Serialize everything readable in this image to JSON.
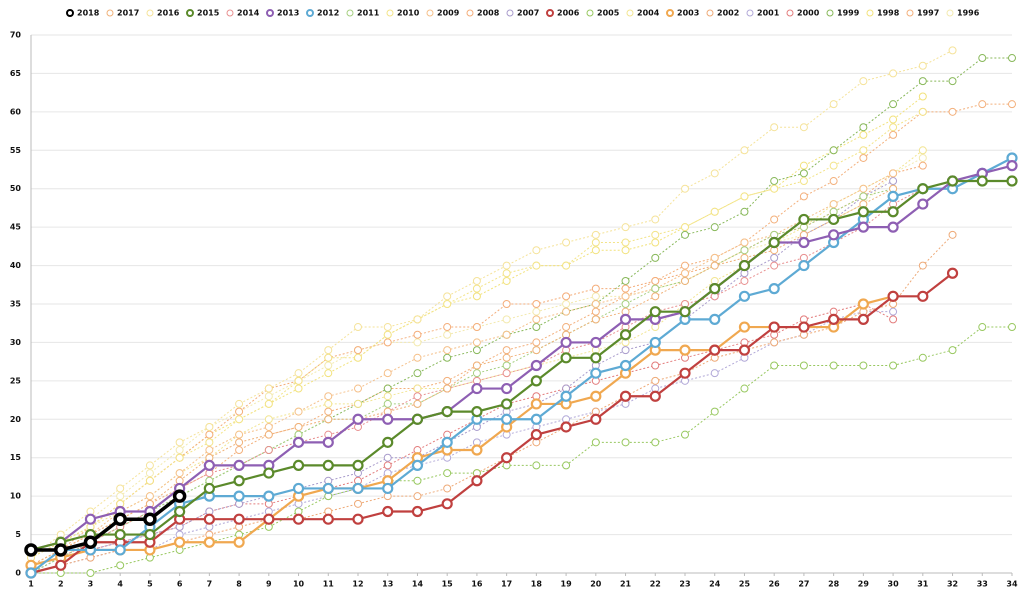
{
  "chart_data": {
    "type": "line",
    "x": [
      1,
      2,
      3,
      4,
      5,
      6,
      7,
      8,
      9,
      10,
      11,
      12,
      13,
      14,
      15,
      16,
      17,
      18,
      19,
      20,
      21,
      22,
      23,
      24,
      25,
      26,
      27,
      28,
      29,
      30,
      31,
      32,
      33,
      34
    ],
    "xlim": [
      1,
      34
    ],
    "xticks": [
      1,
      2,
      3,
      4,
      5,
      6,
      7,
      8,
      9,
      10,
      11,
      12,
      13,
      14,
      15,
      16,
      17,
      18,
      19,
      20,
      21,
      22,
      23,
      24,
      25,
      26,
      27,
      28,
      29,
      30,
      31,
      32,
      33,
      34
    ],
    "ylim": [
      0,
      70
    ],
    "yticks": [
      0,
      5,
      10,
      15,
      20,
      25,
      30,
      35,
      40,
      45,
      50,
      55,
      60,
      65,
      70
    ],
    "grid": true,
    "legend": "top",
    "series": [
      {
        "name": "2018",
        "color": "#000000",
        "line_style": "solid",
        "values": [
          3,
          3,
          4,
          7,
          7,
          10,
          null,
          null,
          null,
          null,
          null,
          null,
          null,
          null,
          null,
          null,
          null,
          null,
          null,
          null,
          null,
          null,
          null,
          null,
          null,
          null,
          null,
          null,
          null,
          null,
          null,
          null,
          null,
          null
        ]
      },
      {
        "name": "2017",
        "color": "#f0b27a",
        "line_style": "dotted",
        "values": [
          1,
          3,
          5,
          7,
          9,
          12,
          15,
          17,
          18,
          19,
          20,
          20,
          21,
          22,
          24,
          27,
          28,
          29,
          31,
          33,
          34,
          36,
          38,
          40,
          41,
          42,
          44,
          46,
          48,
          50,
          null,
          null,
          null,
          null
        ]
      },
      {
        "name": "2016",
        "color": "#f5e39a",
        "line_style": "dotted",
        "values": [
          2,
          5,
          8,
          11,
          14,
          17,
          19,
          22,
          24,
          26,
          29,
          32,
          32,
          33,
          36,
          38,
          40,
          42,
          43,
          44,
          45,
          46,
          50,
          52,
          55,
          58,
          58,
          61,
          64,
          65,
          66,
          68,
          null,
          null
        ]
      },
      {
        "name": "2015",
        "color": "#5b8a2b",
        "line_style": "solid",
        "values": [
          3,
          4,
          5,
          5,
          5,
          8,
          11,
          12,
          13,
          14,
          14,
          14,
          17,
          20,
          21,
          21,
          22,
          25,
          28,
          28,
          31,
          34,
          34,
          37,
          40,
          43,
          46,
          46,
          47,
          47,
          50,
          51,
          51,
          51
        ]
      },
      {
        "name": "2014",
        "color": "#e89090",
        "line_style": "dotted",
        "values": [
          1,
          2,
          4,
          6,
          8,
          11,
          13,
          14,
          16,
          17,
          18,
          19,
          21,
          23,
          24,
          25,
          26,
          27,
          29,
          30,
          32,
          34,
          35,
          36,
          38,
          40,
          41,
          43,
          45,
          48,
          50,
          null,
          null,
          null
        ]
      },
      {
        "name": "2013",
        "color": "#8e5fb3",
        "line_style": "solid",
        "values": [
          3,
          4,
          7,
          8,
          8,
          11,
          14,
          14,
          14,
          17,
          17,
          20,
          20,
          20,
          21,
          24,
          24,
          27,
          30,
          30,
          33,
          33,
          34,
          37,
          40,
          43,
          43,
          44,
          45,
          45,
          48,
          51,
          52,
          53
        ]
      },
      {
        "name": "2012",
        "color": "#5eaad4",
        "line_style": "solid",
        "values": [
          0,
          3,
          3,
          3,
          6,
          9,
          10,
          10,
          10,
          11,
          11,
          11,
          11,
          14,
          17,
          20,
          20,
          20,
          23,
          26,
          27,
          30,
          33,
          33,
          36,
          37,
          40,
          43,
          46,
          49,
          50,
          50,
          52,
          54
        ]
      },
      {
        "name": "2011",
        "color": "#a6cf80",
        "line_style": "dotted",
        "values": [
          0,
          2,
          4,
          6,
          8,
          10,
          12,
          14,
          16,
          18,
          20,
          20,
          22,
          22,
          24,
          26,
          27,
          29,
          31,
          33,
          35,
          37,
          38,
          40,
          42,
          44,
          45,
          47,
          49,
          50,
          null,
          null,
          null,
          null
        ]
      },
      {
        "name": "2010",
        "color": "#f3e489",
        "line_style": "dotted",
        "values": [
          2,
          4,
          6,
          9,
          12,
          15,
          17,
          20,
          22,
          25,
          28,
          28,
          31,
          33,
          35,
          37,
          39,
          40,
          40,
          43,
          43,
          44,
          45,
          47,
          49,
          50,
          51,
          53,
          55,
          58,
          60,
          null,
          null,
          null
        ]
      },
      {
        "name": "2009",
        "color": "#f5c08a",
        "line_style": "dotted",
        "values": [
          1,
          3,
          5,
          8,
          10,
          13,
          16,
          18,
          19,
          21,
          23,
          24,
          26,
          28,
          29,
          30,
          31,
          33,
          34,
          35,
          36,
          37,
          39,
          41,
          43,
          44,
          46,
          48,
          50,
          52,
          null,
          null,
          null,
          null
        ]
      },
      {
        "name": "2008",
        "color": "#f4ad7a",
        "line_style": "dotted",
        "values": [
          1,
          3,
          6,
          9,
          12,
          15,
          18,
          21,
          24,
          25,
          28,
          29,
          30,
          31,
          32,
          32,
          35,
          35,
          36,
          37,
          37,
          38,
          39,
          40,
          42,
          44,
          45,
          47,
          49,
          52,
          53,
          null,
          null,
          null
        ]
      },
      {
        "name": "2007",
        "color": "#a99ccc",
        "line_style": "dotted",
        "values": [
          0,
          2,
          3,
          4,
          5,
          6,
          8,
          9,
          10,
          11,
          12,
          13,
          15,
          15,
          17,
          19,
          21,
          22,
          24,
          27,
          29,
          30,
          33,
          36,
          39,
          41,
          44,
          46,
          49,
          51,
          null,
          null,
          null,
          null
        ]
      },
      {
        "name": "2006",
        "color": "#c0403f",
        "line_style": "solid",
        "values": [
          0,
          1,
          4,
          4,
          4,
          7,
          7,
          7,
          7,
          7,
          7,
          7,
          8,
          8,
          9,
          12,
          15,
          18,
          19,
          20,
          23,
          23,
          26,
          29,
          29,
          32,
          32,
          33,
          33,
          36,
          36,
          39,
          null,
          null
        ]
      },
      {
        "name": "2005",
        "color": "#98c860",
        "line_style": "dotted",
        "values": [
          0,
          0,
          0,
          1,
          2,
          3,
          4,
          5,
          6,
          8,
          10,
          11,
          12,
          12,
          13,
          13,
          14,
          14,
          14,
          17,
          17,
          17,
          18,
          21,
          24,
          27,
          27,
          27,
          27,
          27,
          28,
          29,
          32,
          32
        ]
      },
      {
        "name": "2004",
        "color": "#f2e592",
        "line_style": "dotted",
        "values": [
          2,
          4,
          6,
          8,
          10,
          13,
          15,
          18,
          20,
          21,
          22,
          22,
          23,
          24,
          24,
          25,
          26,
          27,
          28,
          29,
          30,
          32,
          35,
          38,
          40,
          43,
          45,
          48,
          50,
          52,
          55,
          null,
          null,
          null
        ]
      },
      {
        "name": "2003",
        "color": "#f0a850",
        "line_style": "solid",
        "values": [
          1,
          2,
          3,
          3,
          3,
          4,
          4,
          4,
          7,
          10,
          11,
          11,
          12,
          15,
          16,
          16,
          19,
          22,
          22,
          23,
          26,
          29,
          29,
          29,
          32,
          32,
          32,
          32,
          35,
          36,
          null,
          null,
          null,
          null
        ]
      },
      {
        "name": "2002",
        "color": "#eeaa78",
        "line_style": "dotted",
        "values": [
          0,
          1,
          2,
          3,
          3,
          4,
          5,
          6,
          7,
          7,
          8,
          9,
          10,
          10,
          11,
          13,
          15,
          17,
          19,
          21,
          23,
          25,
          26,
          28,
          29,
          30,
          31,
          32,
          34,
          35,
          40,
          44,
          null,
          null
        ]
      },
      {
        "name": "2001",
        "color": "#b2a9d8",
        "line_style": "dotted",
        "values": [
          0,
          1,
          2,
          3,
          3,
          5,
          6,
          7,
          8,
          9,
          10,
          11,
          13,
          14,
          15,
          17,
          18,
          19,
          20,
          21,
          22,
          24,
          25,
          26,
          28,
          30,
          31,
          33,
          34,
          34,
          null,
          null,
          null,
          null
        ]
      },
      {
        "name": "2000",
        "color": "#e37d7d",
        "line_style": "dotted",
        "values": [
          1,
          2,
          3,
          4,
          5,
          6,
          8,
          9,
          9,
          10,
          11,
          12,
          14,
          16,
          18,
          20,
          22,
          23,
          24,
          25,
          26,
          27,
          28,
          29,
          30,
          31,
          33,
          34,
          35,
          33,
          null,
          null,
          null,
          null
        ]
      },
      {
        "name": "1999",
        "color": "#88b85a",
        "line_style": "dotted",
        "values": [
          0,
          2,
          4,
          6,
          8,
          10,
          12,
          14,
          16,
          18,
          20,
          22,
          24,
          26,
          28,
          29,
          31,
          32,
          34,
          35,
          38,
          41,
          44,
          45,
          47,
          51,
          52,
          55,
          58,
          61,
          64,
          64,
          67,
          67
        ]
      },
      {
        "name": "1998",
        "color": "#f2e27c",
        "line_style": "dotted",
        "values": [
          2,
          4,
          6,
          9,
          12,
          15,
          18,
          20,
          22,
          24,
          26,
          28,
          31,
          33,
          35,
          36,
          38,
          40,
          40,
          42,
          42,
          43,
          45,
          47,
          49,
          50,
          53,
          55,
          57,
          59,
          62,
          null,
          null,
          null
        ]
      },
      {
        "name": "1997",
        "color": "#f3b07c",
        "line_style": "dotted",
        "values": [
          1,
          3,
          5,
          7,
          9,
          11,
          13,
          16,
          18,
          19,
          21,
          22,
          24,
          24,
          25,
          27,
          29,
          30,
          32,
          34,
          36,
          38,
          40,
          41,
          43,
          46,
          49,
          51,
          54,
          57,
          60,
          60,
          61,
          61
        ]
      },
      {
        "name": "1996",
        "color": "#f3eab0",
        "line_style": "dotted",
        "values": [
          2,
          4,
          7,
          10,
          13,
          16,
          19,
          21,
          23,
          25,
          27,
          29,
          30,
          30,
          31,
          32,
          33,
          34,
          35,
          36,
          36,
          37,
          38,
          40,
          42,
          43,
          44,
          46,
          48,
          52,
          54,
          null,
          null,
          null
        ]
      }
    ]
  }
}
